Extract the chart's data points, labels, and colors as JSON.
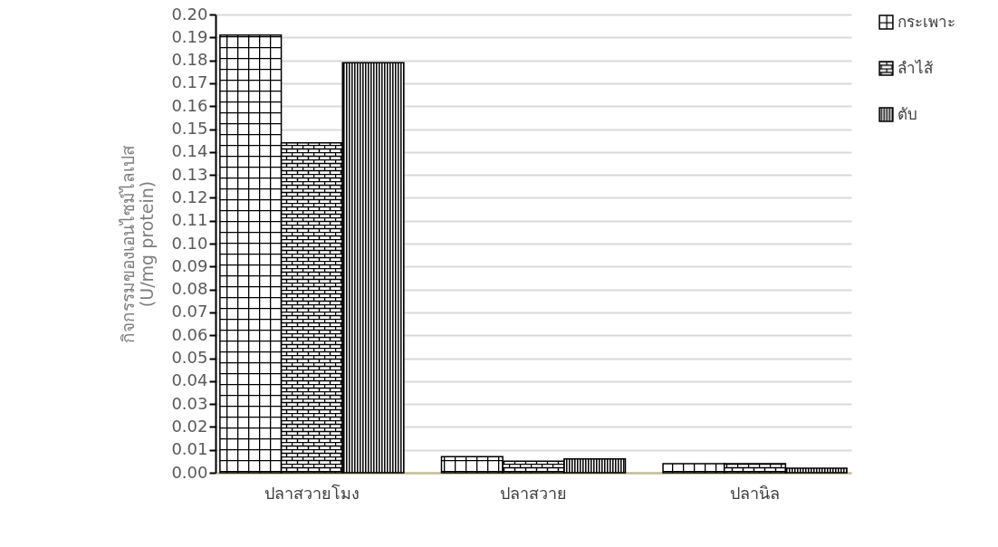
{
  "chart_data": {
    "type": "bar",
    "ylabel": "กิจกรรมของเอนไซม์ไลเปส\n(U/mg protein)",
    "categories": [
      "ปลาสวายโมง",
      "ปลาสวาย",
      "ปลานิล"
    ],
    "series": [
      {
        "name": "กระเพาะ",
        "color": "#000000",
        "values": [
          0.191,
          0.007,
          0.004
        ]
      },
      {
        "name": "ลำไส้",
        "color": "#000000",
        "values": [
          0.144,
          0.005,
          0.004
        ]
      },
      {
        "name": "ตับ",
        "color": "#000000",
        "values": [
          0.179,
          0.006,
          0.002
        ]
      }
    ],
    "ylim": [
      0,
      0.2
    ],
    "yticks": [
      {
        "value": 0,
        "label": "0.00"
      },
      {
        "value": 0.01,
        "label": "0.01"
      },
      {
        "value": 0.02,
        "label": "0.02"
      },
      {
        "value": 0.03,
        "label": "0.03"
      },
      {
        "value": 0.04,
        "label": "0.04"
      },
      {
        "value": 0.05,
        "label": "0.05"
      },
      {
        "value": 0.06,
        "label": "0.06"
      },
      {
        "value": 0.07,
        "label": "0.07"
      },
      {
        "value": 0.08,
        "label": "0.08"
      },
      {
        "value": 0.09,
        "label": "0.09"
      },
      {
        "value": 0.1,
        "label": "0.10"
      },
      {
        "value": 0.11,
        "label": "0.11"
      },
      {
        "value": 0.12,
        "label": "0.12"
      },
      {
        "value": 0.13,
        "label": "0.13"
      },
      {
        "value": 0.14,
        "label": "0.14"
      },
      {
        "value": 0.15,
        "label": "0.15"
      },
      {
        "value": 0.16,
        "label": "0.16"
      },
      {
        "value": 0.17,
        "label": "0.17"
      },
      {
        "value": 0.18,
        "label": "0.18"
      },
      {
        "value": 0.19,
        "label": "0.19"
      },
      {
        "value": 0.2,
        "label": "0.20"
      }
    ],
    "grid": "y",
    "legend": "right"
  }
}
